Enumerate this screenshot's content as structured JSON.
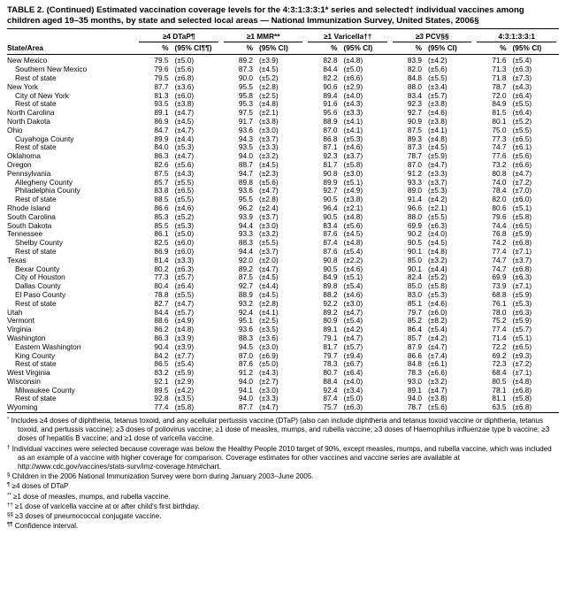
{
  "page": {
    "title": "TABLE 2. (Continued) Estimated vaccination coverage levels for the 4:3:1:3:3:1* series and selected† individual vaccines among children aged 19–35 months, by state and selected local areas — National Immunization Survey, United States, 2006§"
  },
  "table": {
    "state_area_header": "State/Area",
    "groups": [
      {
        "label": "≥4 DTaP¶",
        "pct": "%",
        "ci": "(95% CI¶¶)"
      },
      {
        "label": "≥1 MMR**",
        "pct": "%",
        "ci": "(95% CI)"
      },
      {
        "label": "≥1 Varicella††",
        "pct": "%",
        "ci": "(95% CI)"
      },
      {
        "label": "≥3 PCV§§",
        "pct": "%",
        "ci": "(95% CI)"
      },
      {
        "label": "4:3:1:3:3:1",
        "pct": "%",
        "ci": "(95% CI)"
      }
    ],
    "rows": [
      {
        "name": "New Mexico",
        "indent": false,
        "values": [
          "79.5",
          "(±5.0)",
          "89.2",
          "(±3.9)",
          "82.8",
          "(±4.8)",
          "83.9",
          "(±4.2)",
          "71.6",
          "(±5.4)"
        ]
      },
      {
        "name": "Southern New Mexico",
        "indent": true,
        "values": [
          "79.6",
          "(±5.6)",
          "87.3",
          "(±4.5)",
          "84.4",
          "(±5.0)",
          "82.0",
          "(±5.6)",
          "71.3",
          "(±6.3)"
        ]
      },
      {
        "name": "Rest of state",
        "indent": true,
        "values": [
          "79.5",
          "(±6.8)",
          "90.0",
          "(±5.2)",
          "82.2",
          "(±6.6)",
          "84.8",
          "(±5.5)",
          "71.8",
          "(±7.3)"
        ]
      },
      {
        "name": "New York",
        "indent": false,
        "values": [
          "87.7",
          "(±3.6)",
          "95.5",
          "(±2.8)",
          "90.6",
          "(±2.9)",
          "88.0",
          "(±3.4)",
          "78.7",
          "(±4.3)"
        ]
      },
      {
        "name": "City of New York",
        "indent": true,
        "values": [
          "81.3",
          "(±6.0)",
          "95.8",
          "(±2.5)",
          "89.4",
          "(±4.0)",
          "83.4",
          "(±5.7)",
          "72.0",
          "(±6.4)"
        ]
      },
      {
        "name": "Rest of state",
        "indent": true,
        "values": [
          "93.5",
          "(±3.8)",
          "95.3",
          "(±4.8)",
          "91.6",
          "(±4.3)",
          "92.3",
          "(±3.8)",
          "84.9",
          "(±5.5)"
        ]
      },
      {
        "name": "North Carolina",
        "indent": false,
        "values": [
          "89.1",
          "(±4.7)",
          "97.5",
          "(±2.1)",
          "95.6",
          "(±3.3)",
          "92.7",
          "(±4.6)",
          "81.5",
          "(±6.4)"
        ]
      },
      {
        "name": "North Dakota",
        "indent": false,
        "values": [
          "86.9",
          "(±4.5)",
          "91.7",
          "(±3.8)",
          "88.9",
          "(±4.1)",
          "90.9",
          "(±3.8)",
          "80.1",
          "(±5.2)"
        ]
      },
      {
        "name": "Ohio",
        "indent": false,
        "values": [
          "84.7",
          "(±4.7)",
          "93.6",
          "(±3.0)",
          "87.0",
          "(±4.1)",
          "87.5",
          "(±4.1)",
          "75.0",
          "(±5.5)"
        ]
      },
      {
        "name": "Cuyahoga County",
        "indent": true,
        "values": [
          "89.9",
          "(±4.4)",
          "94.3",
          "(±3.7)",
          "86.8",
          "(±5.3)",
          "89.3",
          "(±4.8)",
          "77.3",
          "(±6.5)"
        ]
      },
      {
        "name": "Rest of state",
        "indent": true,
        "values": [
          "84.0",
          "(±5.3)",
          "93.5",
          "(±3.3)",
          "87.1",
          "(±4.6)",
          "87.3",
          "(±4.5)",
          "74.7",
          "(±6.1)"
        ]
      },
      {
        "name": "Oklahoma",
        "indent": false,
        "values": [
          "86.3",
          "(±4.7)",
          "94.0",
          "(±3.2)",
          "92.3",
          "(±3.7)",
          "78.7",
          "(±5.9)",
          "77.6",
          "(±5.6)"
        ]
      },
      {
        "name": "Oregon",
        "indent": false,
        "values": [
          "82.6",
          "(±5.6)",
          "88.7",
          "(±4.5)",
          "81.7",
          "(±5.8)",
          "87.0",
          "(±4.7)",
          "73.2",
          "(±6.6)"
        ]
      },
      {
        "name": "Pennsylvania",
        "indent": false,
        "values": [
          "87.5",
          "(±4.3)",
          "94.7",
          "(±2.3)",
          "90.8",
          "(±3.0)",
          "91.2",
          "(±3.3)",
          "80.8",
          "(±4.7)"
        ]
      },
      {
        "name": "Allegheny County",
        "indent": true,
        "values": [
          "85.7",
          "(±5.5)",
          "89.8",
          "(±5.6)",
          "89.9",
          "(±5.1)",
          "93.3",
          "(±3.7)",
          "74.0",
          "(±7.2)"
        ]
      },
      {
        "name": "Philadelphia County",
        "indent": true,
        "values": [
          "83.8",
          "(±6.5)",
          "93.6",
          "(±4.7)",
          "92.7",
          "(±4.9)",
          "89.0",
          "(±5.3)",
          "78.4",
          "(±7.0)"
        ]
      },
      {
        "name": "Rest of state",
        "indent": true,
        "values": [
          "88.5",
          "(±5.5)",
          "95.5",
          "(±2.8)",
          "90.5",
          "(±3.8)",
          "91.4",
          "(±4.2)",
          "82.0",
          "(±6.0)"
        ]
      },
      {
        "name": "Rhode Island",
        "indent": false,
        "values": [
          "86.6",
          "(±4.6)",
          "96.2",
          "(±2.4)",
          "96.4",
          "(±2.1)",
          "96.6",
          "(±2.1)",
          "80.6",
          "(±5.1)"
        ]
      },
      {
        "name": "South Carolina",
        "indent": false,
        "values": [
          "85.3",
          "(±5.2)",
          "93.9",
          "(±3.7)",
          "90.5",
          "(±4.8)",
          "88.0",
          "(±5.5)",
          "79.6",
          "(±5.8)"
        ]
      },
      {
        "name": "South Dakota",
        "indent": false,
        "values": [
          "85.5",
          "(±5.3)",
          "94.4",
          "(±3.0)",
          "83.4",
          "(±5.6)",
          "69.9",
          "(±6.3)",
          "74.4",
          "(±6.5)"
        ]
      },
      {
        "name": "Tennessee",
        "indent": false,
        "values": [
          "86.1",
          "(±5.0)",
          "93.3",
          "(±3.2)",
          "87.6",
          "(±4.5)",
          "90.2",
          "(±4.0)",
          "76.8",
          "(±5.9)"
        ]
      },
      {
        "name": "Shelby County",
        "indent": true,
        "values": [
          "82.5",
          "(±6.0)",
          "88.3",
          "(±5.5)",
          "87.4",
          "(±4.8)",
          "90.5",
          "(±4.5)",
          "74.2",
          "(±6.8)"
        ]
      },
      {
        "name": "Rest of state",
        "indent": true,
        "values": [
          "86.9",
          "(±6.0)",
          "94.4",
          "(±3.7)",
          "87.6",
          "(±5.4)",
          "90.1",
          "(±4.8)",
          "77.4",
          "(±7.1)"
        ]
      },
      {
        "name": "Texas",
        "indent": false,
        "values": [
          "81.4",
          "(±3.3)",
          "92.0",
          "(±2.0)",
          "90.8",
          "(±2.2)",
          "85.0",
          "(±3.2)",
          "74.7",
          "(±3.7)"
        ]
      },
      {
        "name": "Bexar County",
        "indent": true,
        "values": [
          "80.2",
          "(±6.3)",
          "89.2",
          "(±4.7)",
          "90.5",
          "(±4.6)",
          "90.1",
          "(±4.4)",
          "74.7",
          "(±6.8)"
        ]
      },
      {
        "name": "City of Houston",
        "indent": true,
        "values": [
          "77.3",
          "(±5.7)",
          "87.5",
          "(±4.5)",
          "84.9",
          "(±5.1)",
          "82.4",
          "(±5.2)",
          "69.9",
          "(±6.3)"
        ]
      },
      {
        "name": "Dallas County",
        "indent": true,
        "values": [
          "80.4",
          "(±6.4)",
          "92.7",
          "(±4.4)",
          "89.8",
          "(±5.4)",
          "85.0",
          "(±5.8)",
          "73.9",
          "(±7.1)"
        ]
      },
      {
        "name": "El Paso County",
        "indent": true,
        "values": [
          "78.8",
          "(±5.5)",
          "88.9",
          "(±4.5)",
          "88.2",
          "(±4.6)",
          "83.0",
          "(±5.3)",
          "68.8",
          "(±5.9)"
        ]
      },
      {
        "name": "Rest of state",
        "indent": true,
        "values": [
          "82.7",
          "(±4.7)",
          "93.2",
          "(±2.8)",
          "92.2",
          "(±3.0)",
          "85.1",
          "(±4.6)",
          "76.1",
          "(±5.3)"
        ]
      },
      {
        "name": "Utah",
        "indent": false,
        "values": [
          "84.4",
          "(±5.7)",
          "92.4",
          "(±4.1)",
          "89.2",
          "(±4.7)",
          "79.7",
          "(±6.0)",
          "78.0",
          "(±6.3)"
        ]
      },
      {
        "name": "Vermont",
        "indent": false,
        "values": [
          "88.6",
          "(±4.9)",
          "95.1",
          "(±2.5)",
          "80.9",
          "(±5.4)",
          "85.2",
          "(±8.2)",
          "75.2",
          "(±5.9)"
        ]
      },
      {
        "name": "Virginia",
        "indent": false,
        "values": [
          "86.2",
          "(±4.8)",
          "93.6",
          "(±3.5)",
          "89.1",
          "(±4.2)",
          "86.4",
          "(±5.4)",
          "77.4",
          "(±5.7)"
        ]
      },
      {
        "name": "Washington",
        "indent": false,
        "values": [
          "86.3",
          "(±3.9)",
          "88.3",
          "(±3.6)",
          "79.1",
          "(±4.7)",
          "85.7",
          "(±4.2)",
          "71.4",
          "(±5.1)"
        ]
      },
      {
        "name": "Eastern Washington",
        "indent": true,
        "values": [
          "90.4",
          "(±3.9)",
          "94.5",
          "(±3.0)",
          "81.7",
          "(±5.7)",
          "87.9",
          "(±4.7)",
          "72.2",
          "(±6.5)"
        ]
      },
      {
        "name": "King County",
        "indent": true,
        "values": [
          "84.2",
          "(±7.7)",
          "87.0",
          "(±6.9)",
          "79.7",
          "(±9.4)",
          "86.6",
          "(±7.4)",
          "69.2",
          "(±9.3)"
        ]
      },
      {
        "name": "Rest of state",
        "indent": true,
        "values": [
          "86.5",
          "(±5.4)",
          "87.6",
          "(±5.0)",
          "78.3",
          "(±6.7)",
          "84.8",
          "(±6.1)",
          "72.3",
          "(±7.2)"
        ]
      },
      {
        "name": "West Virginia",
        "indent": false,
        "values": [
          "83.2",
          "(±5.9)",
          "91.2",
          "(±4.3)",
          "80.7",
          "(±6.4)",
          "78.3",
          "(±6.6)",
          "68.4",
          "(±7.1)"
        ]
      },
      {
        "name": "Wisconsin",
        "indent": false,
        "values": [
          "92.1",
          "(±2.9)",
          "94.0",
          "(±2.7)",
          "88.4",
          "(±4.0)",
          "93.0",
          "(±3.2)",
          "80.5",
          "(±4.8)"
        ]
      },
      {
        "name": "Milwaukee County",
        "indent": true,
        "values": [
          "89.5",
          "(±4.2)",
          "94.1",
          "(±3.0)",
          "92.4",
          "(±3.4)",
          "89.1",
          "(±4.7)",
          "78.1",
          "(±6.8)"
        ]
      },
      {
        "name": "Rest of state",
        "indent": true,
        "values": [
          "92.8",
          "(±3.5)",
          "94.0",
          "(±3.3)",
          "87.4",
          "(±5.0)",
          "94.0",
          "(±3.8)",
          "81.1",
          "(±5.8)"
        ]
      },
      {
        "name": "Wyoming",
        "indent": false,
        "values": [
          "77.4",
          "(±5.8)",
          "87.7",
          "(±4.7)",
          "75.7",
          "(±6.3)",
          "78.7",
          "(±5.6)",
          "63.5",
          "(±6.8)"
        ]
      }
    ]
  },
  "footnotes": [
    {
      "symbol": "*",
      "text": "Includes ≥4 doses of diphtheria, tetanus toxoid, and any acellular pertussis vaccine (DTaP) (also can include diphtheria and tetanus toxoid vaccine or diphtheria, tetanus toxoid, and pertussis vaccine); ≥3 doses of poliovirus vaccine; ≥1 dose of measles, mumps, and rubella vaccine; ≥3 doses of Haemophilus influenzae type b vaccine; ≥3 doses of hepatitis B vaccine; and ≥1 dose of varicella vaccine."
    },
    {
      "symbol": "†",
      "text": "Individual vaccines were selected because coverage was below the Healthy People 2010 target of 90%, except measles, mumps, and rubella vaccine, which was included as an example of a vaccine with higher coverage for comparison. Coverage estimates for other vaccines and vaccine series are available at http://www.cdc.gov/vaccines/stats-surv/imz-coverage.htm#chart."
    },
    {
      "symbol": "§",
      "text": "Children in the 2006 National Immunization Survey were born during January 2003–June 2005."
    },
    {
      "symbol": "¶",
      "text": "≥4 doses of DTaP"
    },
    {
      "symbol": "**",
      "text": "≥1 dose of measles, mumps, and rubella vaccine."
    },
    {
      "symbol": "††",
      "text": "≥1 dose of varicella vaccine at or after child's first birthday."
    },
    {
      "symbol": "§§",
      "text": "≥3 doses of pneumococcal conjugate vaccine."
    },
    {
      "symbol": "¶¶",
      "text": "Confidence interval."
    }
  ]
}
